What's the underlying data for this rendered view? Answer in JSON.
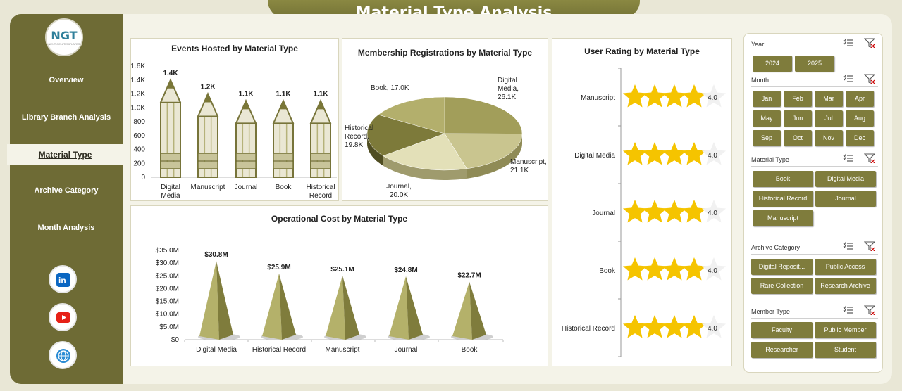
{
  "title": "Material Type Analysis",
  "logo": {
    "text": "NGT",
    "subtext": "NEXT GEN TEMPLATES"
  },
  "nav": [
    {
      "label": "Overview"
    },
    {
      "label": "Library Branch Analysis"
    },
    {
      "label": "Material Type",
      "active": true
    },
    {
      "label": "Archive Category"
    },
    {
      "label": "Month Analysis"
    }
  ],
  "social_icons": [
    "linkedin-icon",
    "youtube-icon",
    "globe-icon"
  ],
  "colors": {
    "olive": "#6e6b35",
    "olive_light": "#b9b56a",
    "accent_gold": "#f5c400",
    "background": "#f4f3e8"
  },
  "charts": {
    "events": {
      "title": "Events Hosted by Material Type",
      "type": "bar",
      "categories": [
        "Digital Media",
        "Manuscript",
        "Journal",
        "Book",
        "Historical Record"
      ],
      "values": [
        1400,
        1200,
        1100,
        1100,
        1100
      ],
      "data_labels": [
        "1.4K",
        "1.2K",
        "1.1K",
        "1.1K",
        "1.1K"
      ],
      "yticks": [
        "1.6K",
        "1.4K",
        "1.2K",
        "1.0K",
        "800",
        "600",
        "400",
        "200",
        "0"
      ],
      "ylim": [
        0,
        1600
      ]
    },
    "membership": {
      "title": "Membership Registrations by Material Type",
      "type": "pie",
      "slices": [
        {
          "label": "Digital Media, 26.1K",
          "value": 26.1
        },
        {
          "label": "Manuscript, 21.1K",
          "value": 21.1
        },
        {
          "label": "Journal, 20.0K",
          "value": 20.0
        },
        {
          "label": "Historical Record, 19.8K",
          "value": 19.8
        },
        {
          "label": "Book, 17.0K",
          "value": 17.0
        }
      ]
    },
    "rating": {
      "title": "User Rating by Material Type",
      "type": "bar",
      "categories": [
        "Manuscript",
        "Digital Media",
        "Journal",
        "Book",
        "Historical Record"
      ],
      "values": [
        4.0,
        4.0,
        4.0,
        4.0,
        4.0
      ],
      "data_labels": [
        "4.0",
        "4.0",
        "4.0",
        "4.0",
        "4.0"
      ],
      "max": 5
    },
    "cost": {
      "title": "Operational Cost by Material Type",
      "type": "bar",
      "categories": [
        "Digital Media",
        "Historical Record",
        "Manuscript",
        "Journal",
        "Book"
      ],
      "values": [
        30.8,
        25.9,
        25.1,
        24.8,
        22.7
      ],
      "data_labels": [
        "$30.8M",
        "$25.9M",
        "$25.1M",
        "$24.8M",
        "$22.7M"
      ],
      "yticks": [
        "$35.0M",
        "$30.0M",
        "$25.0M",
        "$20.0M",
        "$15.0M",
        "$10.0M",
        "$5.0M",
        "$0"
      ],
      "ylim": [
        0,
        35
      ]
    }
  },
  "chart_data": [
    {
      "type": "bar",
      "title": "Events Hosted by Material Type",
      "categories": [
        "Digital Media",
        "Manuscript",
        "Journal",
        "Book",
        "Historical Record"
      ],
      "values": [
        1400,
        1200,
        1100,
        1100,
        1100
      ],
      "ylim": [
        0,
        1600
      ]
    },
    {
      "type": "pie",
      "title": "Membership Registrations by Material Type",
      "categories": [
        "Digital Media",
        "Manuscript",
        "Journal",
        "Historical Record",
        "Book"
      ],
      "values": [
        26.1,
        21.1,
        20.0,
        19.8,
        17.0
      ]
    },
    {
      "type": "bar",
      "title": "User Rating by Material Type",
      "categories": [
        "Manuscript",
        "Digital Media",
        "Journal",
        "Book",
        "Historical Record"
      ],
      "values": [
        4.0,
        4.0,
        4.0,
        4.0,
        4.0
      ]
    },
    {
      "type": "bar",
      "title": "Operational Cost by Material Type",
      "categories": [
        "Digital Media",
        "Historical Record",
        "Manuscript",
        "Journal",
        "Book"
      ],
      "values": [
        30.8,
        25.9,
        25.1,
        24.8,
        22.7
      ],
      "ylim": [
        0,
        35
      ]
    }
  ],
  "filters": {
    "year": {
      "label": "Year",
      "options": [
        "2024",
        "2025"
      ]
    },
    "month": {
      "label": "Month",
      "options": [
        "Jan",
        "Feb",
        "Mar",
        "Apr",
        "May",
        "Jun",
        "Jul",
        "Aug",
        "Sep",
        "Oct",
        "Nov",
        "Dec"
      ]
    },
    "material": {
      "label": "Material Type",
      "options": [
        "Book",
        "Digital Media",
        "Historical Record",
        "Journal",
        "Manuscript"
      ]
    },
    "archive": {
      "label": "Archive Category",
      "options": [
        "Digital Reposit...",
        "Public Access",
        "Rare Collection",
        "Research Archive"
      ]
    },
    "member": {
      "label": "Member Type",
      "options": [
        "Faculty",
        "Public Member",
        "Researcher",
        "Student"
      ]
    }
  }
}
